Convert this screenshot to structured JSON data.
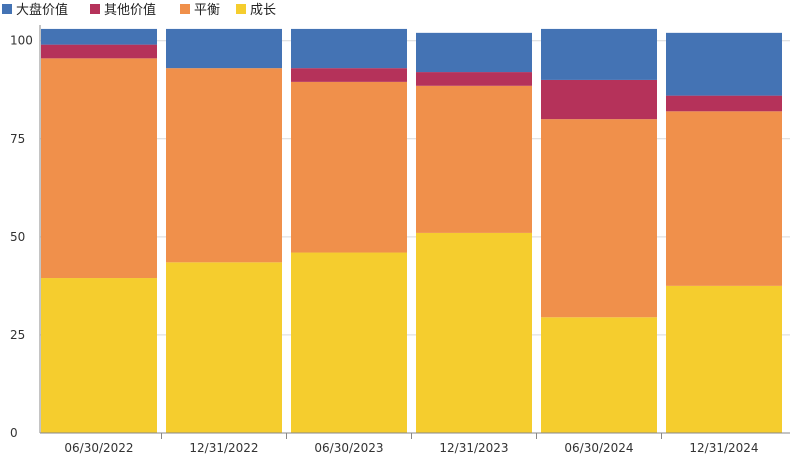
{
  "chart_data": {
    "type": "bar",
    "stacked": true,
    "categories": [
      "06/30/2022",
      "12/31/2022",
      "06/30/2023",
      "12/31/2023",
      "06/30/2024",
      "12/31/2024"
    ],
    "series": [
      {
        "name": "成长",
        "color": "#F5CD2E",
        "values": [
          39.5,
          43.5,
          46,
          51,
          29.5,
          37.5
        ]
      },
      {
        "name": "平衡",
        "color": "#F0904B",
        "values": [
          56,
          49.5,
          43.5,
          37.5,
          50.5,
          44.5
        ]
      },
      {
        "name": "其他价值",
        "color": "#B5325A",
        "values": [
          3.5,
          0,
          3.5,
          3.5,
          10,
          4
        ]
      },
      {
        "name": "大盘价值",
        "color": "#4473B4",
        "values": [
          4,
          10,
          10,
          10,
          13,
          16
        ]
      }
    ],
    "legend_order": [
      "大盘价值",
      "其他价值",
      "平衡",
      "成长"
    ],
    "yticks": [
      0,
      25,
      50,
      75,
      100
    ],
    "ylim": [
      0,
      104
    ],
    "legend_position": "top-left",
    "grid": true
  }
}
